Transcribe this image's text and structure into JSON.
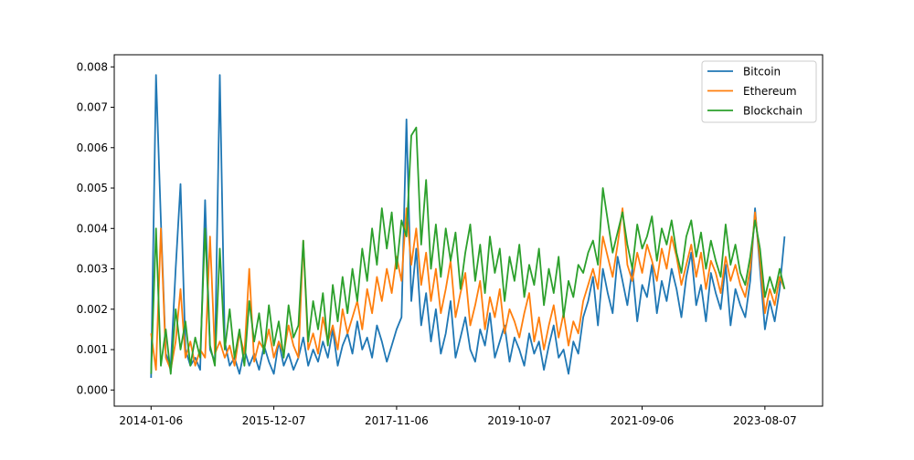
{
  "chart_data": {
    "type": "line",
    "title": "",
    "xlabel": "",
    "ylabel": "",
    "x_start": "2014-01-06",
    "step_weeks": 4,
    "x_ticks": [
      {
        "week": 0,
        "label": "2014-01-06"
      },
      {
        "week": 100,
        "label": "2015-12-07"
      },
      {
        "week": 200,
        "label": "2017-11-06"
      },
      {
        "week": 300,
        "label": "2019-10-07"
      },
      {
        "week": 400,
        "label": "2021-09-06"
      },
      {
        "week": 500,
        "label": "2023-08-07"
      }
    ],
    "y_ticks": [
      "0.000",
      "0.001",
      "0.002",
      "0.003",
      "0.004",
      "0.005",
      "0.006",
      "0.007",
      "0.008"
    ],
    "ylim": [
      -0.0004,
      0.0083
    ],
    "xlim_weeks": [
      -30,
      547
    ],
    "grid": false,
    "legend_position": "top-right",
    "series": [
      {
        "name": "Bitcoin",
        "color": "#1f77b4",
        "values": [
          0.0003,
          0.0078,
          0.0042,
          0.0009,
          0.0006,
          0.003,
          0.0051,
          0.001,
          0.0006,
          0.0008,
          0.0005,
          0.0047,
          0.001,
          0.0007,
          0.0078,
          0.0012,
          0.0006,
          0.0008,
          0.0004,
          0.001,
          0.0006,
          0.0009,
          0.0005,
          0.0011,
          0.0007,
          0.0004,
          0.0012,
          0.0006,
          0.0009,
          0.0005,
          0.0008,
          0.0013,
          0.0006,
          0.001,
          0.0007,
          0.0012,
          0.0008,
          0.0015,
          0.0006,
          0.0011,
          0.0014,
          0.0009,
          0.0017,
          0.001,
          0.0013,
          0.0008,
          0.0016,
          0.0012,
          0.0007,
          0.0011,
          0.0015,
          0.0018,
          0.0067,
          0.0022,
          0.0035,
          0.0016,
          0.0024,
          0.0012,
          0.002,
          0.0009,
          0.0014,
          0.0022,
          0.0008,
          0.0013,
          0.0018,
          0.001,
          0.0007,
          0.0015,
          0.0011,
          0.0019,
          0.0008,
          0.0012,
          0.0016,
          0.0007,
          0.0013,
          0.001,
          0.0006,
          0.0014,
          0.0009,
          0.0012,
          0.0005,
          0.0011,
          0.0016,
          0.0008,
          0.001,
          0.0004,
          0.0012,
          0.0009,
          0.0018,
          0.0022,
          0.0028,
          0.0016,
          0.003,
          0.0024,
          0.0019,
          0.0033,
          0.0027,
          0.0021,
          0.003,
          0.0017,
          0.0026,
          0.0023,
          0.0031,
          0.0019,
          0.0027,
          0.0022,
          0.003,
          0.0025,
          0.0018,
          0.0028,
          0.0034,
          0.0021,
          0.0026,
          0.0017,
          0.0029,
          0.0024,
          0.002,
          0.0031,
          0.0016,
          0.0025,
          0.0021,
          0.0018,
          0.0027,
          0.0045,
          0.003,
          0.0015,
          0.0022,
          0.0017,
          0.0025,
          0.0038
        ]
      },
      {
        "name": "Ethereum",
        "color": "#ff7f0e",
        "values": [
          0.0014,
          0.0005,
          0.004,
          0.0008,
          0.0005,
          0.0012,
          0.0025,
          0.0008,
          0.0012,
          0.0006,
          0.001,
          0.0008,
          0.0038,
          0.0009,
          0.0012,
          0.0008,
          0.0011,
          0.0006,
          0.0014,
          0.0009,
          0.003,
          0.0007,
          0.0012,
          0.001,
          0.0015,
          0.0008,
          0.0012,
          0.0009,
          0.0016,
          0.0011,
          0.0008,
          0.0037,
          0.001,
          0.0014,
          0.0009,
          0.0018,
          0.0012,
          0.0016,
          0.001,
          0.002,
          0.0014,
          0.0018,
          0.0022,
          0.0015,
          0.0025,
          0.0019,
          0.0028,
          0.0022,
          0.003,
          0.0024,
          0.0033,
          0.0027,
          0.0045,
          0.0031,
          0.004,
          0.0026,
          0.0034,
          0.0022,
          0.003,
          0.0019,
          0.0025,
          0.0032,
          0.0018,
          0.0024,
          0.0029,
          0.0016,
          0.0021,
          0.0027,
          0.0015,
          0.0023,
          0.0018,
          0.0025,
          0.0014,
          0.002,
          0.0017,
          0.0013,
          0.0019,
          0.0024,
          0.0012,
          0.0018,
          0.001,
          0.0016,
          0.0021,
          0.0013,
          0.0019,
          0.0011,
          0.0017,
          0.0014,
          0.0022,
          0.0026,
          0.003,
          0.0025,
          0.0038,
          0.0033,
          0.0028,
          0.0036,
          0.0045,
          0.0031,
          0.0027,
          0.0034,
          0.0029,
          0.0036,
          0.0032,
          0.0027,
          0.0035,
          0.003,
          0.0038,
          0.0033,
          0.0026,
          0.0031,
          0.0036,
          0.0028,
          0.0034,
          0.0025,
          0.0032,
          0.0029,
          0.0024,
          0.0033,
          0.0027,
          0.0031,
          0.0026,
          0.0023,
          0.003,
          0.0044,
          0.0032,
          0.0019,
          0.0025,
          0.0021,
          0.0028,
          0.0025
        ]
      },
      {
        "name": "Blockchain",
        "color": "#2ca02c",
        "values": [
          0.0004,
          0.004,
          0.0006,
          0.0015,
          0.0004,
          0.002,
          0.001,
          0.0017,
          0.0006,
          0.0013,
          0.0008,
          0.004,
          0.0011,
          0.0006,
          0.0035,
          0.001,
          0.002,
          0.0008,
          0.0015,
          0.0006,
          0.0022,
          0.0012,
          0.0019,
          0.0009,
          0.0021,
          0.0011,
          0.0017,
          0.0008,
          0.0021,
          0.0013,
          0.0016,
          0.0037,
          0.0012,
          0.0022,
          0.0015,
          0.0024,
          0.0011,
          0.0026,
          0.0017,
          0.0028,
          0.0019,
          0.003,
          0.0022,
          0.0035,
          0.0027,
          0.004,
          0.0031,
          0.0045,
          0.0035,
          0.0044,
          0.003,
          0.0042,
          0.0038,
          0.0063,
          0.0065,
          0.0036,
          0.0052,
          0.003,
          0.0041,
          0.0028,
          0.004,
          0.0032,
          0.0039,
          0.0025,
          0.0034,
          0.0041,
          0.0027,
          0.0036,
          0.0024,
          0.0038,
          0.0029,
          0.0035,
          0.0022,
          0.0033,
          0.0027,
          0.0036,
          0.0023,
          0.0031,
          0.0026,
          0.0035,
          0.0021,
          0.003,
          0.0024,
          0.0033,
          0.0018,
          0.0027,
          0.0023,
          0.0031,
          0.0029,
          0.0034,
          0.0037,
          0.0031,
          0.005,
          0.0042,
          0.0034,
          0.0039,
          0.0044,
          0.0036,
          0.003,
          0.0041,
          0.0035,
          0.0038,
          0.0043,
          0.0032,
          0.004,
          0.0036,
          0.0042,
          0.0034,
          0.0029,
          0.0038,
          0.0042,
          0.0033,
          0.0039,
          0.003,
          0.0037,
          0.0032,
          0.0028,
          0.0041,
          0.0031,
          0.0036,
          0.0029,
          0.0026,
          0.0033,
          0.0042,
          0.0035,
          0.0023,
          0.0028,
          0.0024,
          0.003,
          0.0025
        ]
      }
    ]
  }
}
